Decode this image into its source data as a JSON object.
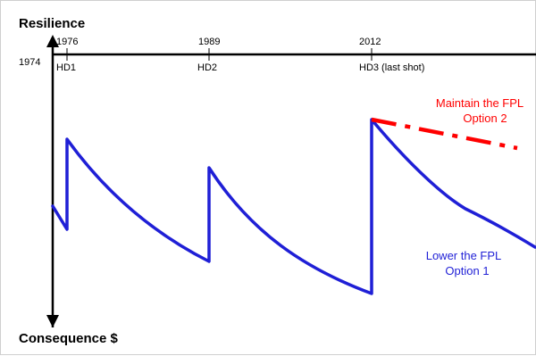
{
  "labels": {
    "top_axis": "Resilience",
    "bottom_axis": "Consequence $",
    "origin_year": "1974"
  },
  "ticks": [
    {
      "year": "1976",
      "event": "HD1"
    },
    {
      "year": "1989",
      "event": "HD2"
    },
    {
      "year": "2012",
      "event": "HD3 (last shot)"
    }
  ],
  "annotations": {
    "option2": {
      "line1": "Maintain the FPL",
      "line2": "Option 2",
      "color": "#ff0000"
    },
    "option1": {
      "line1": "Lower the FPL",
      "line2": "Option 1",
      "color": "#1f1fd6"
    }
  },
  "colors": {
    "axis": "#000000",
    "blue_curve": "#1f1fd6",
    "red_dashed": "#ff0000"
  }
}
